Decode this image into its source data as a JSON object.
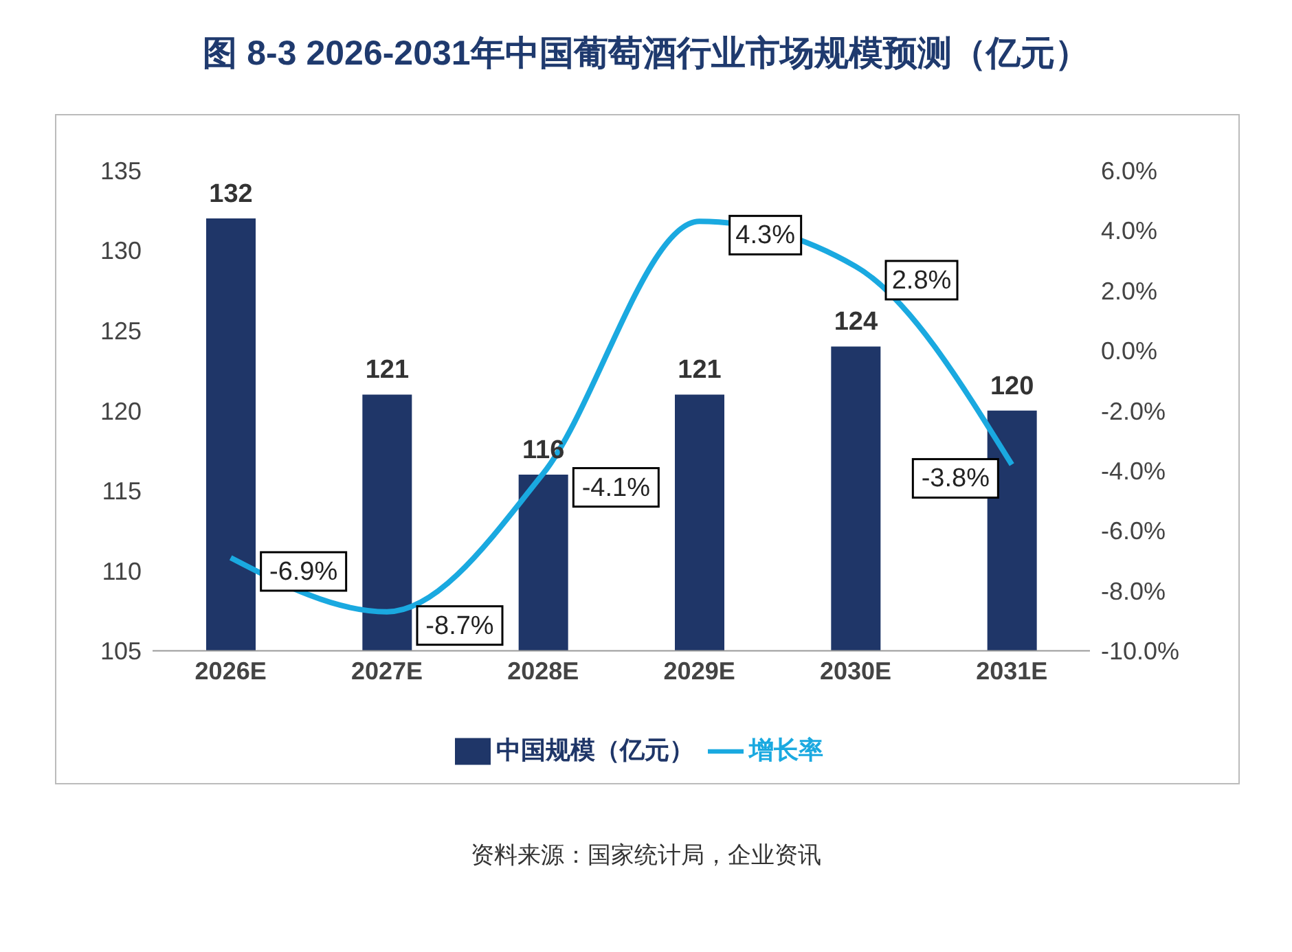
{
  "chart_data": {
    "type": "bar",
    "title": "图  8-3 2026-2031年中国葡萄酒行业市场规模预测（亿元）",
    "categories": [
      "2026E",
      "2027E",
      "2028E",
      "2029E",
      "2030E",
      "2031E"
    ],
    "series": [
      {
        "name": "中国规模（亿元）",
        "color": "#1f3668",
        "values": [
          132,
          121,
          116,
          121,
          124,
          120
        ],
        "value_labels": [
          "132",
          "121",
          "116",
          "121",
          "124",
          "120"
        ]
      },
      {
        "name": "增长率",
        "type": "line",
        "axis": "y2",
        "color": "#1aa9e0",
        "values": [
          -6.9,
          -8.7,
          -4.1,
          4.3,
          2.8,
          -3.8
        ],
        "value_labels": [
          "-6.9%",
          "-8.7%",
          "-4.1%",
          "4.3%",
          "2.8%",
          "-3.8%"
        ]
      }
    ],
    "ylim": [
      105,
      135
    ],
    "yticks": [
      105,
      110,
      115,
      120,
      125,
      130,
      135
    ],
    "y2lim": [
      -10,
      6
    ],
    "y2ticks": [
      {
        "value": -10,
        "label": "-10.0%"
      },
      {
        "value": -8,
        "label": "-8.0%"
      },
      {
        "value": -6,
        "label": "-6.0%"
      },
      {
        "value": -4,
        "label": "-4.0%"
      },
      {
        "value": -2,
        "label": "-2.0%"
      },
      {
        "value": 0,
        "label": "0.0%"
      },
      {
        "value": 2,
        "label": "2.0%"
      },
      {
        "value": 4,
        "label": "4.0%"
      },
      {
        "value": 6,
        "label": "6.0%"
      }
    ],
    "grid": false,
    "legend": "bottom",
    "marker": "none",
    "annotations": [
      "资料来源：国家统计局，企业资讯"
    ]
  }
}
